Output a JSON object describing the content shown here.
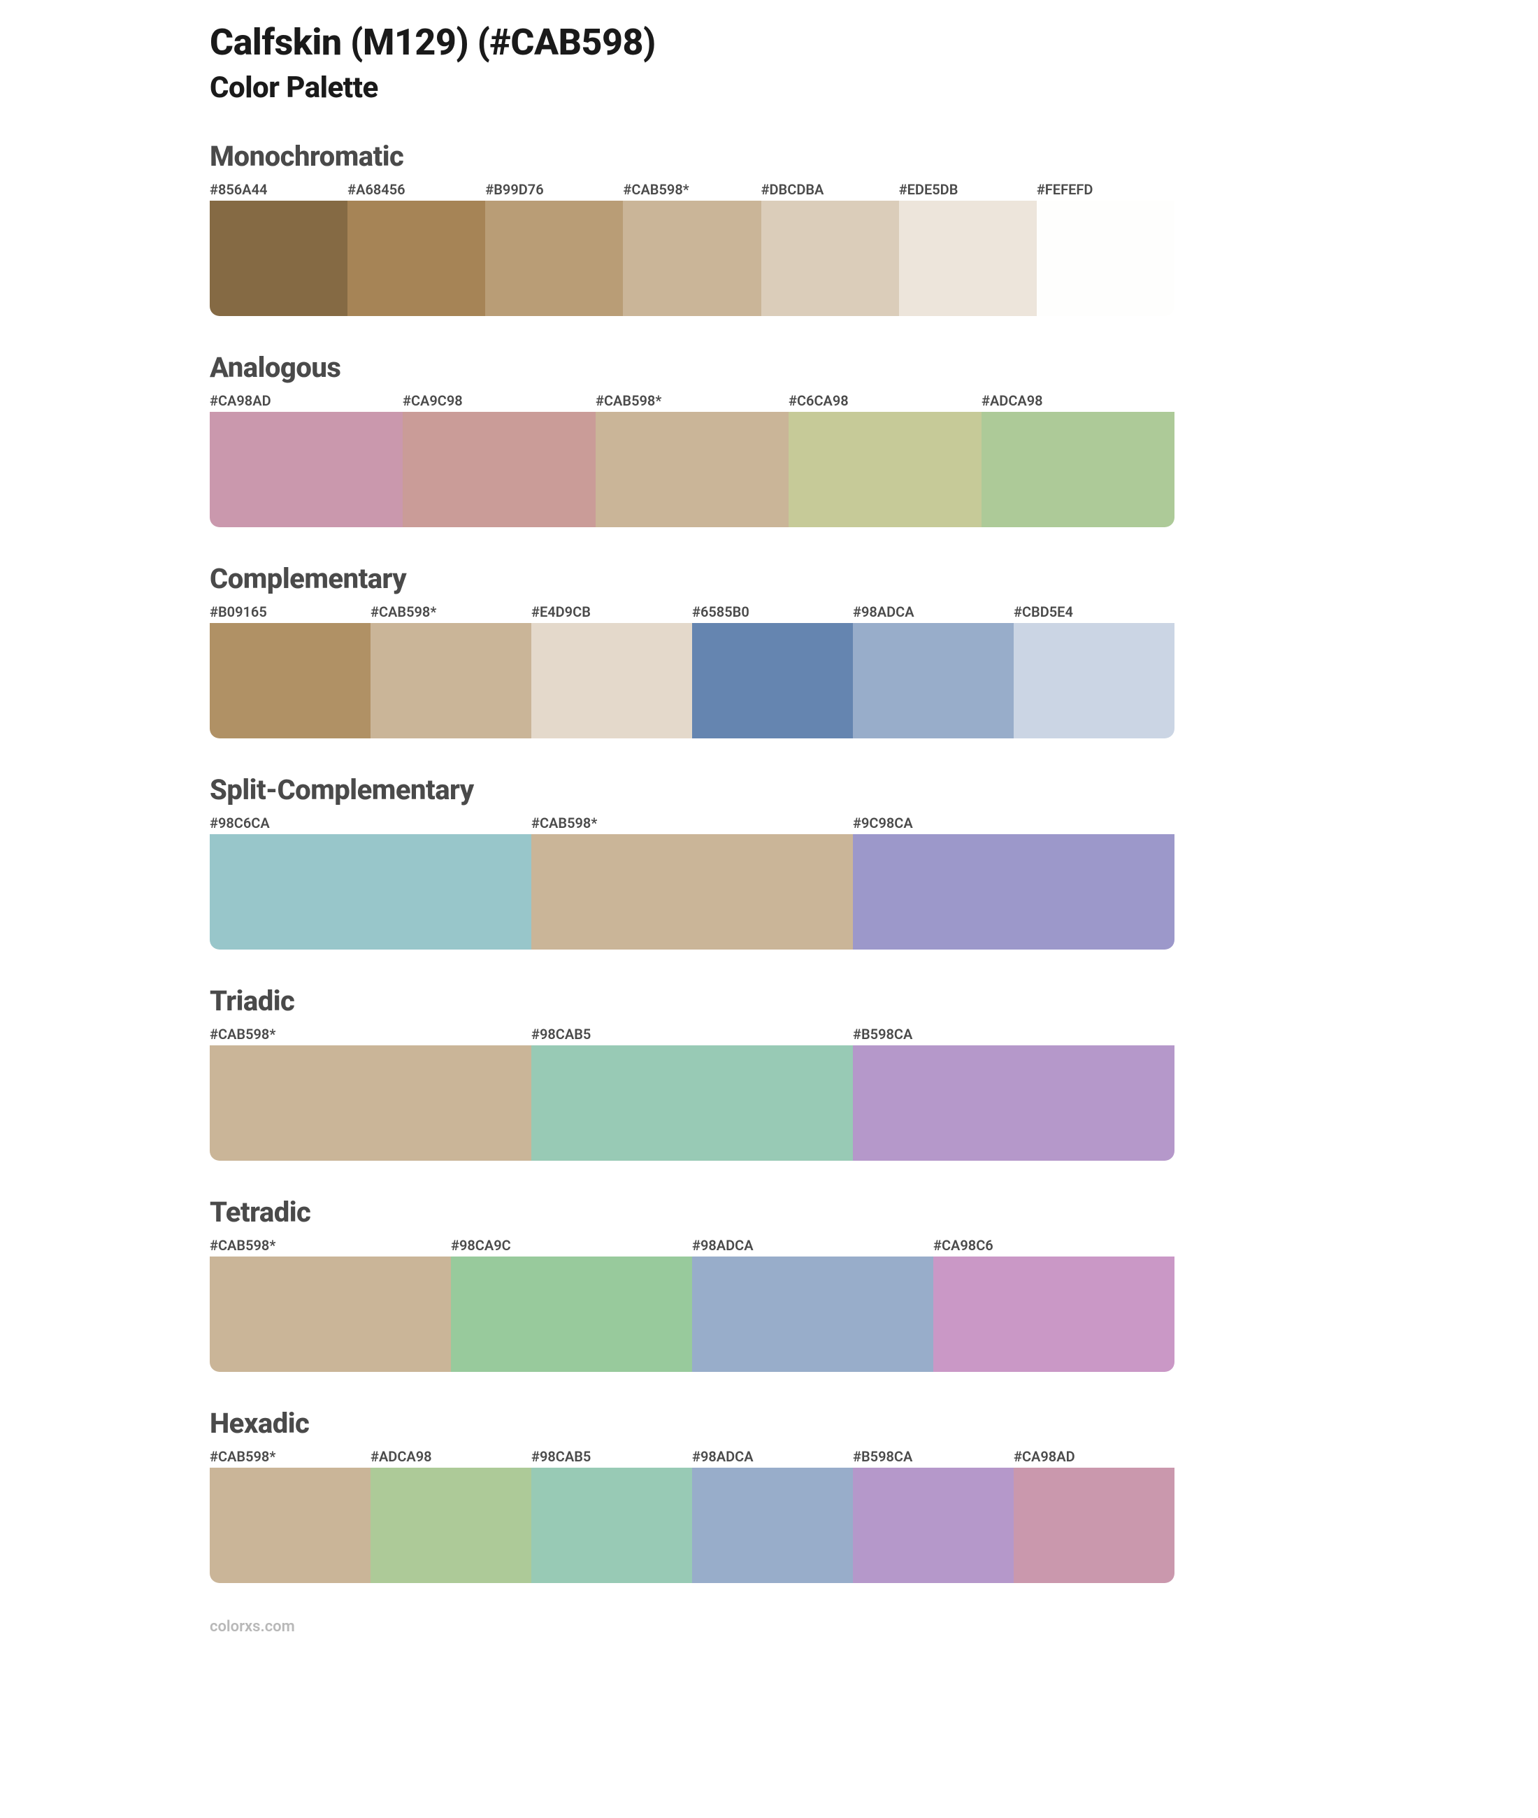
{
  "title": "Calfskin (M129) (#CAB598)",
  "subtitle": "Color Palette",
  "footer": "colorxs.com",
  "heading_color": "#4a4a4a",
  "title_color": "#1a1a1a",
  "label_color": "#4a4a4a",
  "background_color": "#ffffff",
  "swatch_height": 165,
  "border_radius": 14,
  "sections": [
    {
      "name": "Monochromatic",
      "swatches": [
        {
          "label": "#856A44",
          "color": "#856A44"
        },
        {
          "label": "#A68456",
          "color": "#A68456"
        },
        {
          "label": "#B99D76",
          "color": "#B99D76"
        },
        {
          "label": "#CAB598*",
          "color": "#CAB598"
        },
        {
          "label": "#DBCDBA",
          "color": "#DBCDBA"
        },
        {
          "label": "#EDE5DB",
          "color": "#EDE5DB"
        },
        {
          "label": "#FEFEFD",
          "color": "#FEFEFD"
        }
      ]
    },
    {
      "name": "Analogous",
      "swatches": [
        {
          "label": "#CA98AD",
          "color": "#CA98AD"
        },
        {
          "label": "#CA9C98",
          "color": "#CA9C98"
        },
        {
          "label": "#CAB598*",
          "color": "#CAB598"
        },
        {
          "label": "#C6CA98",
          "color": "#C6CA98"
        },
        {
          "label": "#ADCA98",
          "color": "#ADCA98"
        }
      ]
    },
    {
      "name": "Complementary",
      "swatches": [
        {
          "label": "#B09165",
          "color": "#B09165"
        },
        {
          "label": "#CAB598*",
          "color": "#CAB598"
        },
        {
          "label": "#E4D9CB",
          "color": "#E4D9CB"
        },
        {
          "label": "#6585B0",
          "color": "#6585B0"
        },
        {
          "label": "#98ADCA",
          "color": "#98ADCA"
        },
        {
          "label": "#CBD5E4",
          "color": "#CBD5E4"
        }
      ]
    },
    {
      "name": "Split-Complementary",
      "swatches": [
        {
          "label": "#98C6CA",
          "color": "#98C6CA"
        },
        {
          "label": "#CAB598*",
          "color": "#CAB598"
        },
        {
          "label": "#9C98CA",
          "color": "#9C98CA"
        }
      ]
    },
    {
      "name": "Triadic",
      "swatches": [
        {
          "label": "#CAB598*",
          "color": "#CAB598"
        },
        {
          "label": "#98CAB5",
          "color": "#98CAB5"
        },
        {
          "label": "#B598CA",
          "color": "#B598CA"
        }
      ]
    },
    {
      "name": "Tetradic",
      "swatches": [
        {
          "label": "#CAB598*",
          "color": "#CAB598"
        },
        {
          "label": "#98CA9C",
          "color": "#98CA9C"
        },
        {
          "label": "#98ADCA",
          "color": "#98ADCA"
        },
        {
          "label": "#CA98C6",
          "color": "#CA98C6"
        }
      ]
    },
    {
      "name": "Hexadic",
      "swatches": [
        {
          "label": "#CAB598*",
          "color": "#CAB598"
        },
        {
          "label": "#ADCA98",
          "color": "#ADCA98"
        },
        {
          "label": "#98CAB5",
          "color": "#98CAB5"
        },
        {
          "label": "#98ADCA",
          "color": "#98ADCA"
        },
        {
          "label": "#B598CA",
          "color": "#B598CA"
        },
        {
          "label": "#CA98AD",
          "color": "#CA98AD"
        }
      ]
    }
  ]
}
